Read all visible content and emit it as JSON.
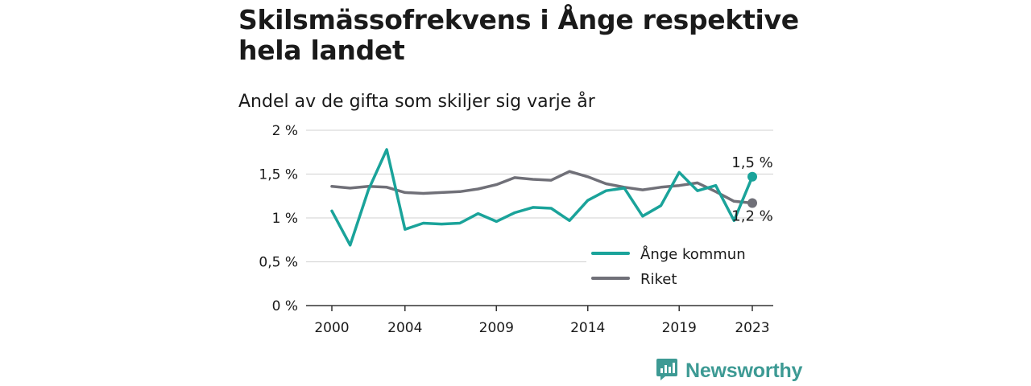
{
  "header": {
    "title": "Skilsmässofrekvens i Ånge respektive hela landet",
    "subtitle": "Andel av de gifta som skiljer sig varje år"
  },
  "colors": {
    "ange": "#1aa39a",
    "riket": "#707078",
    "grid": "#d9d9d9",
    "brand": "#3d9a94"
  },
  "chart_data": {
    "type": "line",
    "x_ticks": [
      "2000",
      "2004",
      "2009",
      "2014",
      "2019",
      "2023"
    ],
    "y_ticks": [
      "0 %",
      "0,5 %",
      "1 %",
      "1,5 %",
      "2 %"
    ],
    "ylim": [
      0,
      2
    ],
    "xlim": [
      2000,
      2023
    ],
    "grid": "horizontal",
    "legend_position": "bottom-right",
    "x": [
      2000,
      2001,
      2002,
      2003,
      2004,
      2005,
      2006,
      2007,
      2008,
      2009,
      2010,
      2011,
      2012,
      2013,
      2014,
      2015,
      2016,
      2017,
      2018,
      2019,
      2020,
      2021,
      2022,
      2023
    ],
    "series": [
      {
        "name": "Ånge kommun",
        "color": "#1aa39a",
        "values": [
          1.08,
          0.69,
          1.32,
          1.78,
          0.87,
          0.94,
          0.93,
          0.94,
          1.05,
          0.96,
          1.06,
          1.12,
          1.11,
          0.97,
          1.2,
          1.31,
          1.34,
          1.02,
          1.14,
          1.52,
          1.31,
          1.37,
          0.97,
          1.47
        ],
        "end_label": "1,5 %"
      },
      {
        "name": "Riket",
        "color": "#707078",
        "values": [
          1.36,
          1.34,
          1.36,
          1.35,
          1.29,
          1.28,
          1.29,
          1.3,
          1.33,
          1.38,
          1.46,
          1.44,
          1.43,
          1.53,
          1.47,
          1.39,
          1.35,
          1.32,
          1.35,
          1.37,
          1.4,
          1.3,
          1.19,
          1.17
        ],
        "end_label": "1,2 %"
      }
    ]
  },
  "brand": {
    "name": "Newsworthy",
    "icon": "newsworthy-logo-icon"
  }
}
